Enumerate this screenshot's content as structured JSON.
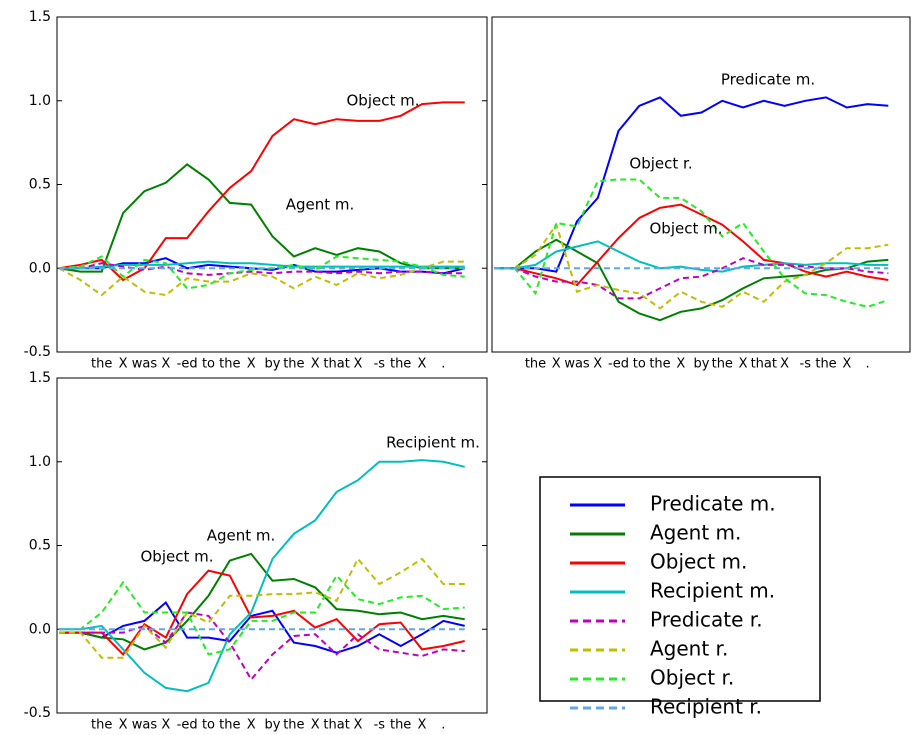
{
  "chart_data": [
    {
      "type": "line",
      "categories": [
        null,
        null,
        "the",
        "X",
        "was",
        "X",
        "-ed",
        "to",
        "the",
        "X",
        "by",
        "the",
        "X",
        "that",
        "X",
        "-s",
        "the",
        "X",
        ".",
        null
      ],
      "ylim": [
        -0.5,
        1.5
      ],
      "yticks": [
        -0.5,
        {
          "value": 0,
          "label": "0.0"
        },
        0.5,
        {
          "value": 1,
          "label": "1.0"
        },
        1.5
      ],
      "annotations": [
        "Object m.",
        "Agent m."
      ],
      "series": [
        {
          "color": "#0000ff",
          "style": "solid",
          "values": [
            0,
            0,
            0,
            0.03,
            0.03,
            0.06,
            0,
            0.02,
            0.01,
            0,
            -0.01,
            0.02,
            -0.02,
            -0.02,
            -0.01,
            0,
            -0.02,
            -0.02,
            -0.03,
            0
          ]
        },
        {
          "color": "#008000",
          "style": "solid",
          "values": [
            0,
            -0.02,
            -0.02,
            0.33,
            0.46,
            0.51,
            0.62,
            0.53,
            0.39,
            0.38,
            0.19,
            0.07,
            0.12,
            0.08,
            0.12,
            0.1,
            0.03,
            0,
            0,
            0
          ]
        },
        {
          "color": "#ff0000",
          "style": "solid",
          "values": [
            0,
            0.02,
            0.05,
            -0.07,
            0,
            0.18,
            0.18,
            0.34,
            0.48,
            0.58,
            0.79,
            0.89,
            0.86,
            0.89,
            0.88,
            0.88,
            0.91,
            0.98,
            0.99,
            0.99
          ]
        },
        {
          "color": "#00bfbf",
          "style": "solid",
          "values": [
            0,
            0,
            0.01,
            0.02,
            0.02,
            0.02,
            0.03,
            0.04,
            0.03,
            0.03,
            0.02,
            0.01,
            0.01,
            0.01,
            0.01,
            0.01,
            0.01,
            0.01,
            0.01,
            0.01
          ]
        },
        {
          "color": "#bf00bf",
          "style": "dashed",
          "values": [
            0,
            0,
            0.03,
            0.01,
            -0.01,
            0.01,
            -0.03,
            -0.04,
            -0.03,
            -0.02,
            -0.03,
            -0.02,
            -0.02,
            -0.03,
            -0.02,
            -0.03,
            -0.02,
            -0.02,
            -0.03,
            -0.03
          ]
        },
        {
          "color": "#bfbf00",
          "style": "dashed",
          "values": [
            0,
            -0.07,
            -0.16,
            -0.05,
            -0.14,
            -0.16,
            -0.06,
            -0.08,
            -0.08,
            -0.03,
            -0.05,
            -0.12,
            -0.05,
            -0.1,
            -0.03,
            -0.06,
            -0.04,
            0,
            0.04,
            0.04
          ]
        },
        {
          "color": "#22ee22",
          "style": "dashed",
          "values": [
            0,
            0.01,
            0.07,
            -0.05,
            0.05,
            0.03,
            -0.12,
            -0.1,
            -0.03,
            -0.01,
            0,
            0.02,
            -0.01,
            0.07,
            0.06,
            0.05,
            0.04,
            0.01,
            -0.04,
            -0.05
          ]
        },
        {
          "color": "#5fa8e8",
          "style": "dashed",
          "values": [
            0,
            0,
            0,
            0,
            0,
            0,
            0,
            0,
            0,
            0,
            0,
            0,
            0,
            0,
            0,
            0,
            0,
            0,
            0,
            0
          ]
        }
      ]
    },
    {
      "type": "line",
      "categories": [
        null,
        null,
        "the",
        "X",
        "was",
        "X",
        "-ed",
        "to",
        "the",
        "X",
        "by",
        "the",
        "X",
        "that",
        "X",
        "-s",
        "the",
        "X",
        ".",
        null
      ],
      "ylim": [
        -0.5,
        1.5
      ],
      "annotations": [
        "Predicate m.",
        "Object r.",
        "Object m."
      ],
      "series": [
        {
          "color": "#0000ff",
          "style": "solid",
          "values": [
            0,
            0,
            0,
            -0.02,
            0.28,
            0.42,
            0.82,
            0.97,
            1.02,
            0.91,
            0.93,
            1.0,
            0.96,
            1.0,
            0.97,
            1.0,
            1.02,
            0.96,
            0.98,
            0.97
          ]
        },
        {
          "color": "#008000",
          "style": "solid",
          "values": [
            0,
            0,
            0.1,
            0.17,
            0.1,
            0.03,
            -0.2,
            -0.27,
            -0.31,
            -0.26,
            -0.24,
            -0.19,
            -0.12,
            -0.06,
            -0.05,
            -0.04,
            -0.01,
            0,
            0.04,
            0.05
          ]
        },
        {
          "color": "#ff0000",
          "style": "solid",
          "values": [
            0,
            0,
            -0.03,
            -0.06,
            -0.1,
            0.04,
            0.18,
            0.3,
            0.36,
            0.38,
            0.32,
            0.26,
            0.16,
            0.05,
            0.03,
            -0.02,
            -0.05,
            -0.02,
            -0.05,
            -0.07
          ]
        },
        {
          "color": "#00bfbf",
          "style": "solid",
          "values": [
            0,
            0,
            0.02,
            0.1,
            0.13,
            0.16,
            0.1,
            0.04,
            0,
            0.01,
            -0.01,
            -0.02,
            0.01,
            0.02,
            0.03,
            0.02,
            0.03,
            0.03,
            0.02,
            0.02
          ]
        },
        {
          "color": "#bf00bf",
          "style": "dashed",
          "values": [
            0,
            0,
            -0.05,
            -0.08,
            -0.08,
            -0.1,
            -0.18,
            -0.18,
            -0.12,
            -0.06,
            -0.05,
            0,
            0.06,
            0.02,
            0.02,
            0.01,
            0,
            0,
            -0.02,
            -0.03
          ]
        },
        {
          "color": "#bfbf00",
          "style": "dashed",
          "values": [
            0,
            0,
            0.08,
            0.26,
            -0.14,
            -0.1,
            -0.13,
            -0.15,
            -0.24,
            -0.14,
            -0.2,
            -0.23,
            -0.14,
            -0.2,
            -0.08,
            -0.04,
            0.03,
            0.12,
            0.12,
            0.14
          ]
        },
        {
          "color": "#22ee22",
          "style": "dashed",
          "values": [
            0,
            0,
            -0.15,
            0.27,
            0.25,
            0.52,
            0.53,
            0.53,
            0.42,
            0.42,
            0.34,
            0.19,
            0.27,
            0.1,
            -0.06,
            -0.15,
            -0.16,
            -0.2,
            -0.23,
            -0.19
          ]
        },
        {
          "color": "#5fa8e8",
          "style": "dashed",
          "values": [
            0,
            0,
            0,
            0,
            0,
            0,
            0,
            0,
            0,
            0,
            0,
            0,
            0,
            0,
            0,
            0,
            0,
            0,
            0,
            0
          ]
        }
      ]
    },
    {
      "type": "line",
      "categories": [
        null,
        null,
        "the",
        "X",
        "was",
        "X",
        "-ed",
        "to",
        "the",
        "X",
        "by",
        "the",
        "X",
        "that",
        "X",
        "-s",
        "the",
        "X",
        ".",
        null
      ],
      "ylim": [
        -0.5,
        1.5
      ],
      "yticks": [
        -0.5,
        {
          "value": 0,
          "label": "0.0"
        },
        0.5,
        {
          "value": 1,
          "label": "1.0"
        },
        1.5
      ],
      "annotations": [
        "Recipient m.",
        "Agent m.",
        "Object m."
      ],
      "legend": true,
      "series": [
        {
          "name": "Predicate m.",
          "color": "#0000ff",
          "style": "solid",
          "values": [
            -0.02,
            -0.02,
            -0.05,
            0.02,
            0.05,
            0.16,
            -0.05,
            -0.05,
            -0.07,
            0.08,
            0.11,
            -0.08,
            -0.1,
            -0.14,
            -0.1,
            -0.03,
            -0.1,
            -0.03,
            0.05,
            0.02
          ]
        },
        {
          "name": "Agent m.",
          "color": "#008000",
          "style": "solid",
          "values": [
            -0.02,
            -0.02,
            -0.05,
            -0.06,
            -0.12,
            -0.08,
            0.05,
            0.2,
            0.41,
            0.45,
            0.29,
            0.3,
            0.25,
            0.12,
            0.11,
            0.09,
            0.1,
            0.06,
            0.08,
            0.06
          ]
        },
        {
          "name": "Object m.",
          "color": "#ff0000",
          "style": "solid",
          "values": [
            -0.02,
            -0.02,
            -0.02,
            -0.15,
            0.03,
            -0.05,
            0.21,
            0.35,
            0.32,
            0.07,
            0.08,
            0.11,
            0.01,
            0.06,
            -0.07,
            0.03,
            0.04,
            -0.12,
            -0.1,
            -0.07
          ]
        },
        {
          "name": "Recipient m.",
          "color": "#00bfbf",
          "style": "solid",
          "values": [
            0,
            0,
            0.02,
            -0.12,
            -0.26,
            -0.35,
            -0.37,
            -0.32,
            -0.03,
            0.1,
            0.42,
            0.57,
            0.65,
            0.82,
            0.89,
            1.0,
            1.0,
            1.01,
            1.0,
            0.97
          ]
        },
        {
          "name": "Predicate r.",
          "color": "#bf00bf",
          "style": "dashed",
          "values": [
            -0.02,
            -0.02,
            -0.02,
            -0.02,
            0.02,
            -0.08,
            0.1,
            0.08,
            -0.08,
            -0.3,
            -0.15,
            -0.04,
            -0.03,
            -0.15,
            -0.03,
            -0.12,
            -0.14,
            -0.16,
            -0.12,
            -0.13
          ]
        },
        {
          "name": "Agent r.",
          "color": "#bfbf00",
          "style": "dashed",
          "values": [
            -0.02,
            -0.02,
            -0.17,
            -0.17,
            0.02,
            -0.11,
            0.1,
            0.04,
            0.2,
            0.2,
            0.21,
            0.21,
            0.22,
            0.17,
            0.42,
            0.27,
            0.34,
            0.42,
            0.27,
            0.27
          ]
        },
        {
          "name": "Object r.",
          "color": "#22ee22",
          "style": "dashed",
          "values": [
            0,
            0,
            0.1,
            0.28,
            0.1,
            0.1,
            0.1,
            -0.15,
            -0.12,
            0.05,
            0.05,
            0.1,
            0.1,
            0.32,
            0.18,
            0.15,
            0.19,
            0.2,
            0.12,
            0.13
          ]
        },
        {
          "name": "Recipient r.",
          "color": "#5fa8e8",
          "style": "dashed",
          "values": [
            0,
            0,
            0,
            0,
            0,
            0,
            0,
            0,
            0,
            0,
            0,
            0,
            0,
            0,
            0,
            0,
            0,
            0,
            0,
            0
          ]
        }
      ]
    }
  ]
}
